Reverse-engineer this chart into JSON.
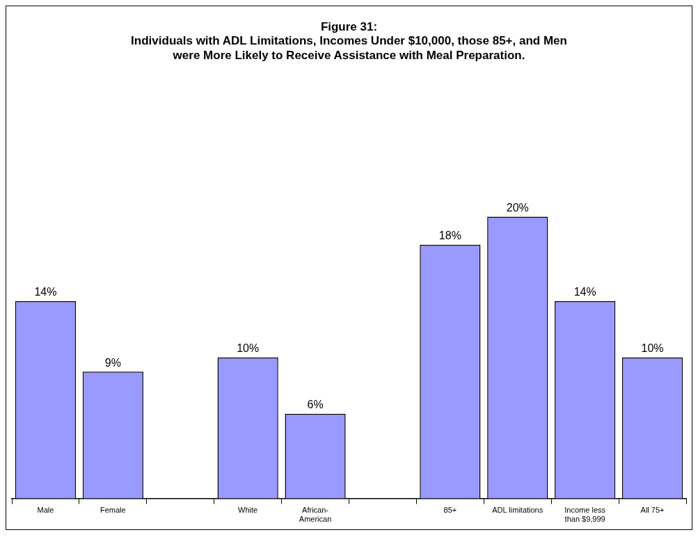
{
  "chart_data": {
    "type": "bar",
    "title": "Figure 31:\nIndividuals with ADL Limitations, Incomes Under $10,000, those 85+, and Men were More Likely to Receive Assistance with Meal Preparation.",
    "categories": [
      "Male",
      "Female",
      null,
      "White",
      "African-American",
      null,
      "85+",
      "ADL limitations",
      "Income less than $9,999",
      "All 75+"
    ],
    "values": [
      14,
      9,
      null,
      10,
      6,
      null,
      18,
      20,
      14,
      10
    ],
    "value_labels": [
      "14%",
      "9%",
      null,
      "10%",
      "6%",
      null,
      "18%",
      "20%",
      "14%",
      "10%"
    ],
    "color": "#9999ff"
  }
}
